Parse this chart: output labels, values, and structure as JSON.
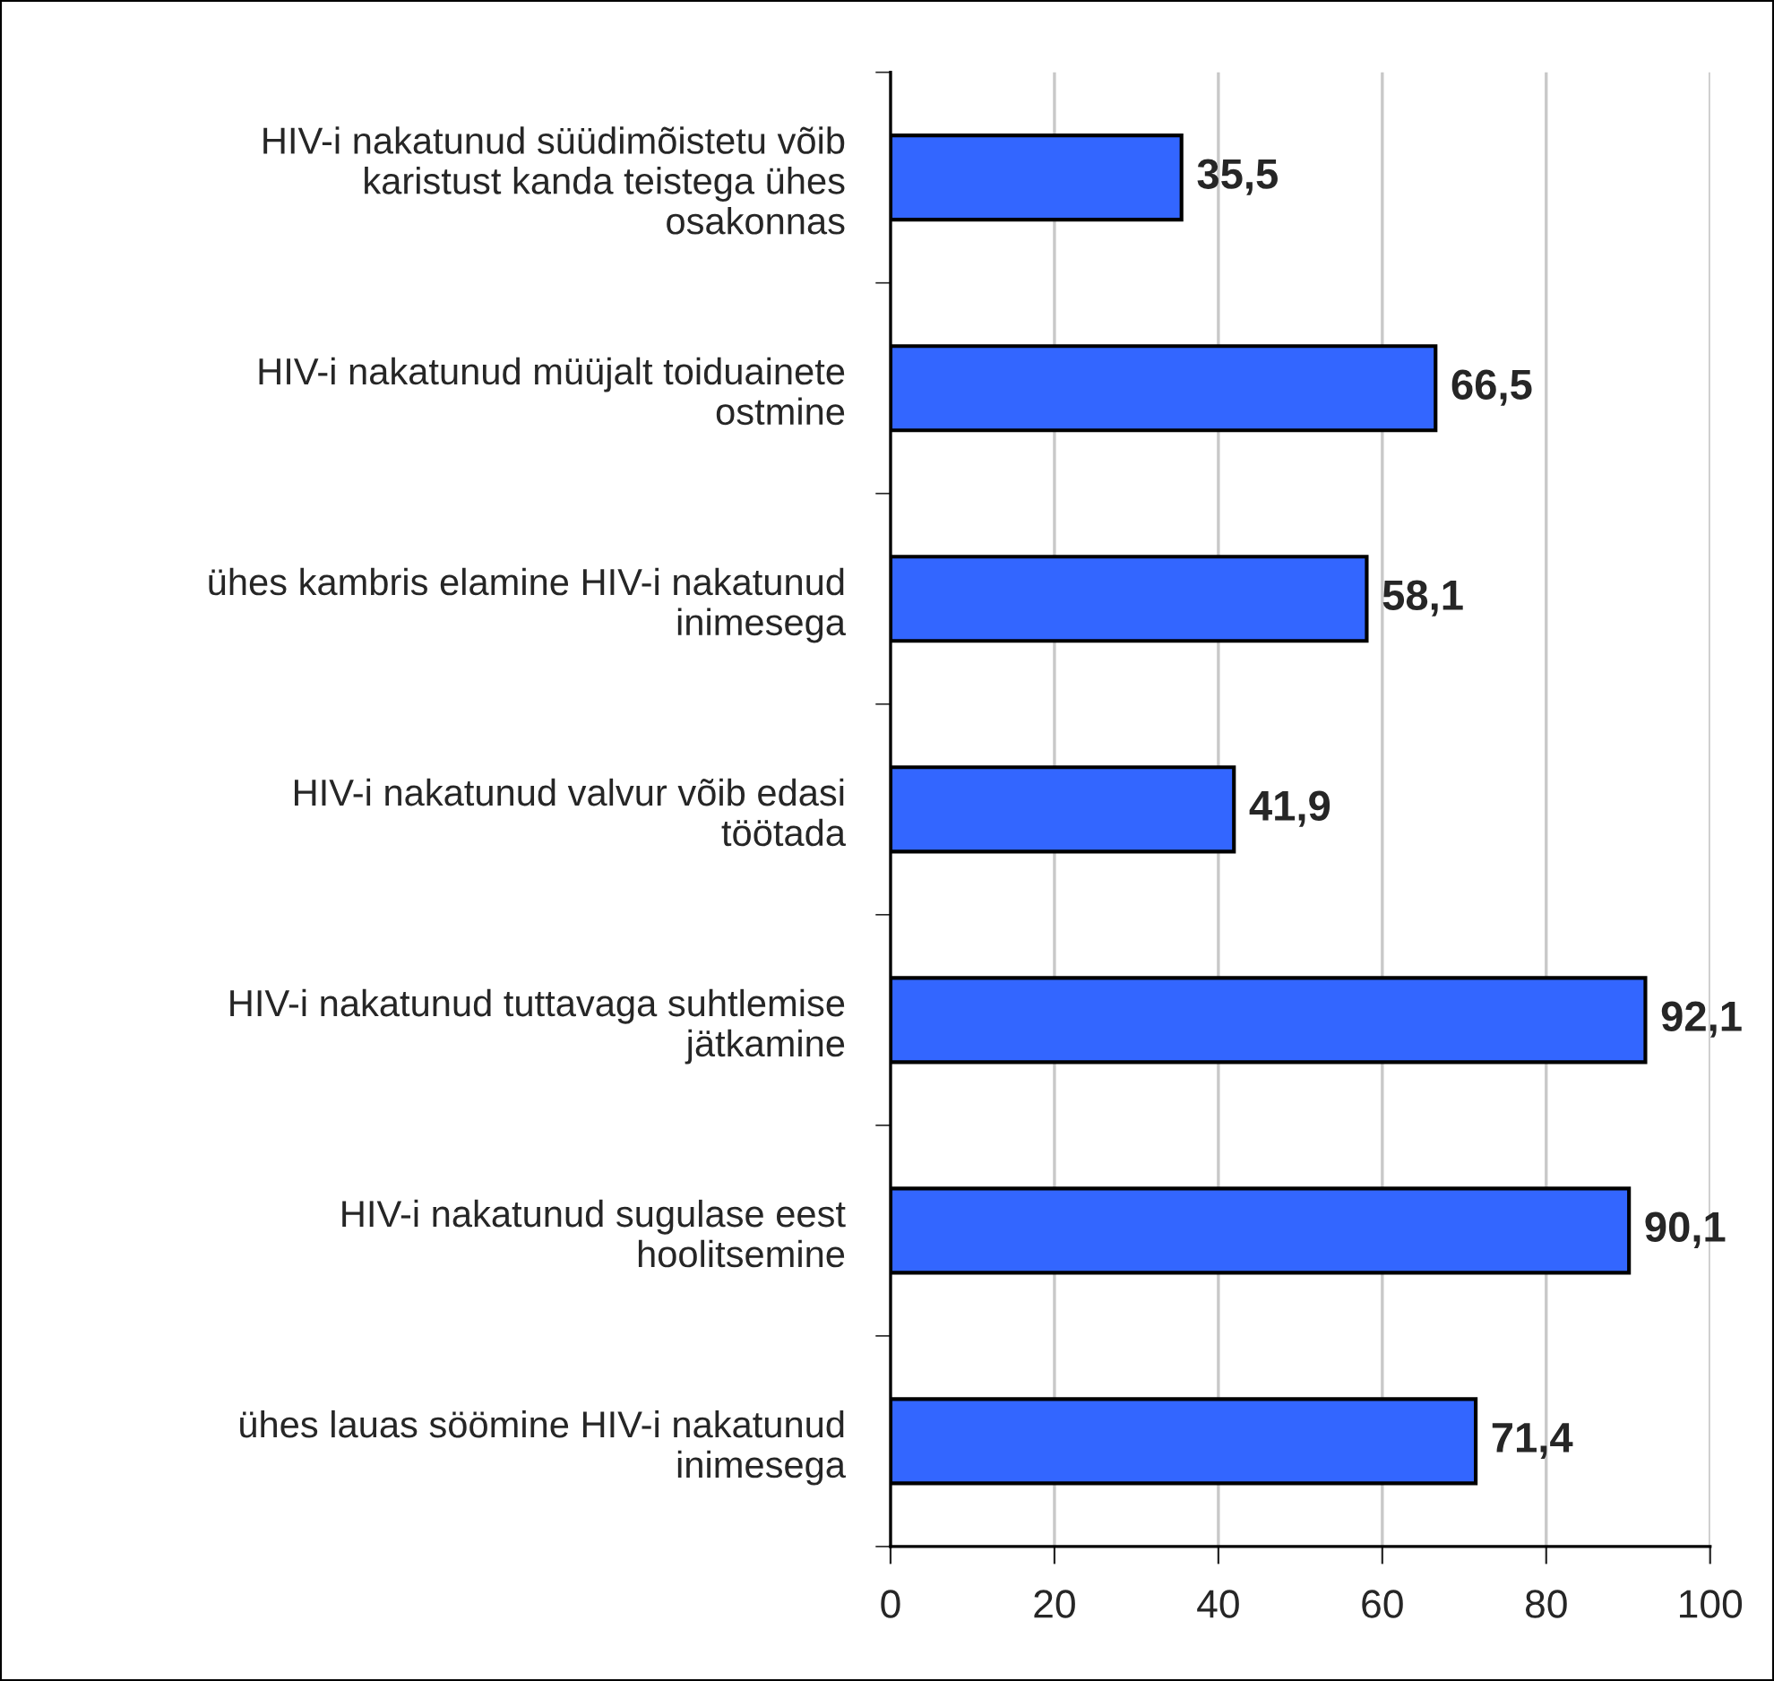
{
  "chart_data": {
    "type": "bar",
    "orientation": "horizontal",
    "categories": [
      "HIV-i nakatunud süüdimõistetu võib\nkaristust kanda teistega ühes\nosakonnas",
      "HIV-i nakatunud müüjalt toiduainete\nostmine",
      "ühes kambris elamine HIV-i nakatunud\ninimesega",
      "HIV-i nakatunud valvur võib edasi\ntöötada",
      "HIV-i nakatunud tuttavaga suhtlemise\njätkamine",
      "HIV-i nakatunud sugulase eest\nhoolitsemine",
      "ühes lauas söömine HIV-i nakatunud\ninimesega"
    ],
    "values": [
      35.5,
      66.5,
      58.1,
      41.9,
      92.1,
      90.1,
      71.4
    ],
    "value_labels": [
      "35,5",
      "66,5",
      "58,1",
      "41,9",
      "92,1",
      "90,1",
      "71,4"
    ],
    "color": "#3366ff",
    "xlim": [
      0,
      100
    ],
    "xticks": [
      0,
      20,
      40,
      60,
      80,
      100
    ],
    "grid": "x"
  }
}
